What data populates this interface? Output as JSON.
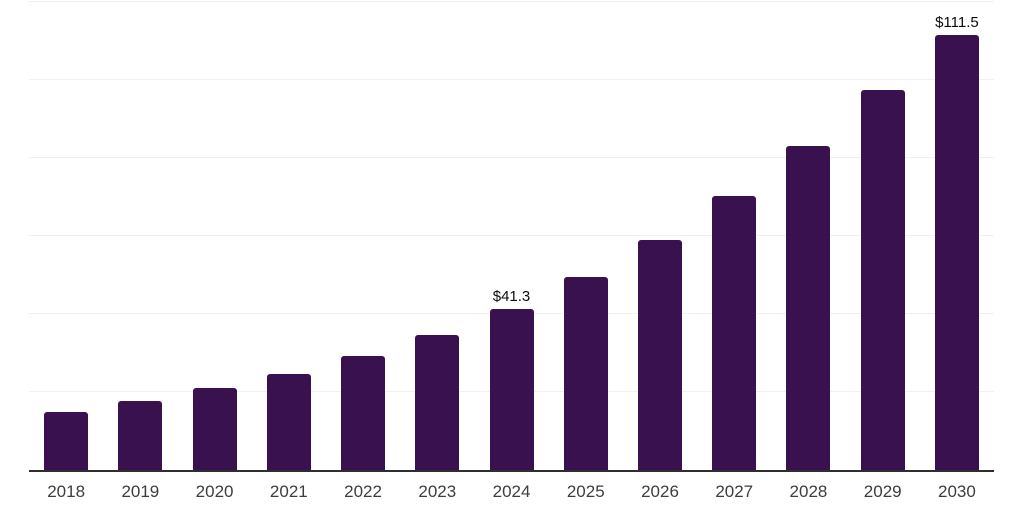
{
  "chart_data": {
    "type": "bar",
    "title": "",
    "xlabel": "",
    "ylabel": "",
    "categories": [
      "2018",
      "2019",
      "2020",
      "2021",
      "2022",
      "2023",
      "2024",
      "2025",
      "2026",
      "2027",
      "2028",
      "2029",
      "2030"
    ],
    "values": [
      14.8,
      17.7,
      21.0,
      24.7,
      29.2,
      34.5,
      41.3,
      49.4,
      59.1,
      70.3,
      83.1,
      97.5,
      111.5
    ],
    "data_labels": [
      "",
      "",
      "",
      "",
      "",
      "",
      "$41.3",
      "",
      "",
      "",
      "",
      "",
      "$111.5"
    ],
    "ylim": [
      0,
      120
    ],
    "gridline_step": 20,
    "grid": "horizontal-light",
    "legend_position": "none",
    "y_tick_labels_visible": false,
    "colors": {
      "bar": "#39114f",
      "gridline": "#f0f0f0",
      "axis_line": "#2e2e2e",
      "tick_label": "#3d3d3d",
      "data_label": "#0d0d0d",
      "background": "#ffffff"
    }
  }
}
